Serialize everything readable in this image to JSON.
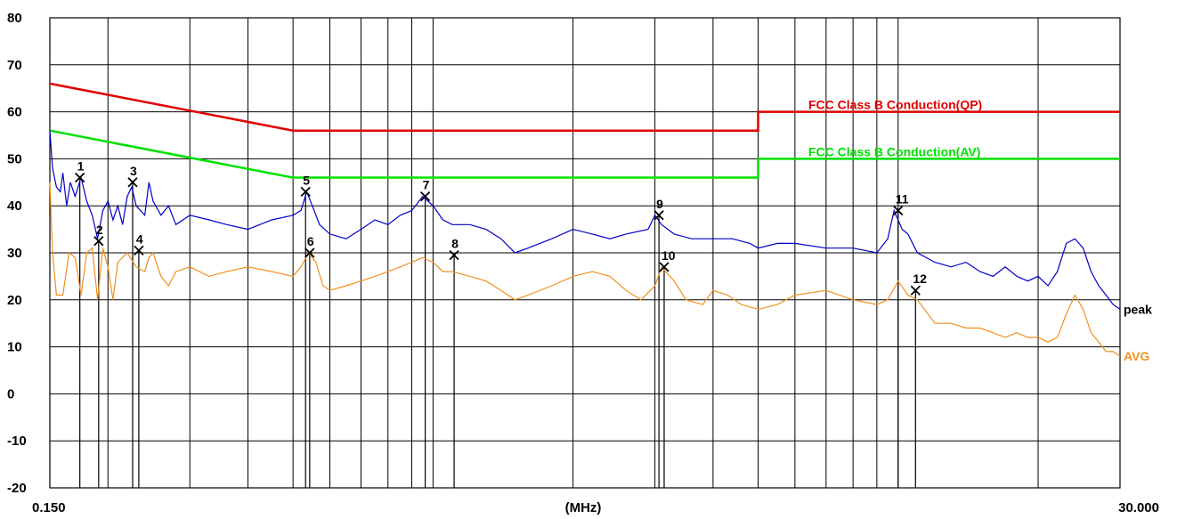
{
  "chart_data": {
    "type": "line",
    "xlabel": "(MHz)",
    "xscale": "log",
    "xlim": [
      0.15,
      30
    ],
    "x_tick_labels": [
      "0.150",
      "30.000"
    ],
    "ylim": [
      -25,
      80
    ],
    "y_ticks": [
      80,
      70,
      60,
      50,
      40,
      30,
      20,
      10,
      0,
      -10,
      -20
    ],
    "grid": true,
    "limits": [
      {
        "name": "FCC Class B Conduction(QP)",
        "color": "#e00000",
        "points": [
          [
            0.15,
            66
          ],
          [
            0.5,
            56
          ],
          [
            5,
            56
          ],
          [
            5,
            60
          ],
          [
            30,
            60
          ]
        ]
      },
      {
        "name": "FCC Class B Conduction(AV)",
        "color": "#00e000",
        "points": [
          [
            0.15,
            56
          ],
          [
            0.5,
            46
          ],
          [
            5,
            46
          ],
          [
            5,
            50
          ],
          [
            30,
            50
          ]
        ]
      }
    ],
    "series": [
      {
        "name": "peak",
        "color": "#0000c8",
        "points": [
          [
            0.15,
            56
          ],
          [
            0.152,
            48
          ],
          [
            0.155,
            44
          ],
          [
            0.158,
            43
          ],
          [
            0.16,
            47
          ],
          [
            0.163,
            40
          ],
          [
            0.166,
            45
          ],
          [
            0.17,
            42
          ],
          [
            0.175,
            46
          ],
          [
            0.18,
            41
          ],
          [
            0.185,
            38
          ],
          [
            0.19,
            33
          ],
          [
            0.195,
            39
          ],
          [
            0.2,
            41
          ],
          [
            0.205,
            37
          ],
          [
            0.21,
            40
          ],
          [
            0.215,
            36
          ],
          [
            0.22,
            42
          ],
          [
            0.225,
            44
          ],
          [
            0.23,
            40
          ],
          [
            0.24,
            38
          ],
          [
            0.245,
            45
          ],
          [
            0.25,
            41
          ],
          [
            0.26,
            38
          ],
          [
            0.27,
            40
          ],
          [
            0.28,
            36
          ],
          [
            0.3,
            38
          ],
          [
            0.33,
            37
          ],
          [
            0.36,
            36
          ],
          [
            0.4,
            35
          ],
          [
            0.45,
            37
          ],
          [
            0.5,
            38
          ],
          [
            0.52,
            39
          ],
          [
            0.535,
            43
          ],
          [
            0.55,
            40
          ],
          [
            0.57,
            36
          ],
          [
            0.6,
            34
          ],
          [
            0.65,
            33
          ],
          [
            0.7,
            35
          ],
          [
            0.75,
            37
          ],
          [
            0.8,
            36
          ],
          [
            0.85,
            38
          ],
          [
            0.9,
            39
          ],
          [
            0.95,
            42
          ],
          [
            1.0,
            40
          ],
          [
            1.05,
            37
          ],
          [
            1.1,
            36
          ],
          [
            1.2,
            36
          ],
          [
            1.3,
            35
          ],
          [
            1.4,
            33
          ],
          [
            1.5,
            30
          ],
          [
            1.6,
            31
          ],
          [
            1.8,
            33
          ],
          [
            2.0,
            35
          ],
          [
            2.2,
            34
          ],
          [
            2.4,
            33
          ],
          [
            2.6,
            34
          ],
          [
            2.9,
            35
          ],
          [
            3.0,
            38
          ],
          [
            3.1,
            36
          ],
          [
            3.3,
            34
          ],
          [
            3.6,
            33
          ],
          [
            4.0,
            33
          ],
          [
            4.4,
            33
          ],
          [
            4.8,
            32
          ],
          [
            5.0,
            31
          ],
          [
            5.5,
            32
          ],
          [
            6.0,
            32
          ],
          [
            7.0,
            31
          ],
          [
            8.0,
            31
          ],
          [
            9.0,
            30
          ],
          [
            9.5,
            33
          ],
          [
            9.8,
            39
          ],
          [
            10.2,
            35
          ],
          [
            10.5,
            34
          ],
          [
            11,
            30
          ],
          [
            12,
            28
          ],
          [
            13,
            27
          ],
          [
            14,
            28
          ],
          [
            15,
            26
          ],
          [
            16,
            25
          ],
          [
            17,
            27
          ],
          [
            18,
            25
          ],
          [
            19,
            24
          ],
          [
            20,
            25
          ],
          [
            21,
            23
          ],
          [
            22,
            26
          ],
          [
            23,
            32
          ],
          [
            24,
            33
          ],
          [
            25,
            31
          ],
          [
            26,
            26
          ],
          [
            27,
            23
          ],
          [
            28,
            21
          ],
          [
            29,
            19
          ],
          [
            30,
            18
          ]
        ]
      },
      {
        "name": "AVG",
        "color": "#f09020",
        "points": [
          [
            0.15,
            45
          ],
          [
            0.152,
            30
          ],
          [
            0.155,
            21
          ],
          [
            0.16,
            21
          ],
          [
            0.165,
            30
          ],
          [
            0.17,
            29
          ],
          [
            0.175,
            21
          ],
          [
            0.18,
            30
          ],
          [
            0.185,
            31
          ],
          [
            0.19,
            20
          ],
          [
            0.195,
            31
          ],
          [
            0.2,
            27
          ],
          [
            0.205,
            20
          ],
          [
            0.21,
            28
          ],
          [
            0.22,
            30
          ],
          [
            0.23,
            27
          ],
          [
            0.24,
            26
          ],
          [
            0.245,
            29
          ],
          [
            0.25,
            30
          ],
          [
            0.26,
            25
          ],
          [
            0.27,
            23
          ],
          [
            0.28,
            26
          ],
          [
            0.3,
            27
          ],
          [
            0.33,
            25
          ],
          [
            0.36,
            26
          ],
          [
            0.4,
            27
          ],
          [
            0.45,
            26
          ],
          [
            0.5,
            25
          ],
          [
            0.52,
            27
          ],
          [
            0.54,
            30
          ],
          [
            0.56,
            28
          ],
          [
            0.58,
            23
          ],
          [
            0.6,
            22
          ],
          [
            0.65,
            23
          ],
          [
            0.7,
            24
          ],
          [
            0.75,
            25
          ],
          [
            0.8,
            26
          ],
          [
            0.85,
            27
          ],
          [
            0.9,
            28
          ],
          [
            0.95,
            29
          ],
          [
            1.0,
            28
          ],
          [
            1.05,
            26
          ],
          [
            1.1,
            26
          ],
          [
            1.2,
            25
          ],
          [
            1.3,
            24
          ],
          [
            1.4,
            22
          ],
          [
            1.5,
            20
          ],
          [
            1.6,
            21
          ],
          [
            1.8,
            23
          ],
          [
            2.0,
            25
          ],
          [
            2.2,
            26
          ],
          [
            2.4,
            25
          ],
          [
            2.6,
            22
          ],
          [
            2.8,
            20
          ],
          [
            3.0,
            23
          ],
          [
            3.1,
            27
          ],
          [
            3.3,
            24
          ],
          [
            3.5,
            20
          ],
          [
            3.8,
            19
          ],
          [
            4.0,
            22
          ],
          [
            4.3,
            21
          ],
          [
            4.6,
            19
          ],
          [
            5.0,
            18
          ],
          [
            5.5,
            19
          ],
          [
            6.0,
            21
          ],
          [
            7.0,
            22
          ],
          [
            8.0,
            20
          ],
          [
            9.0,
            19
          ],
          [
            9.5,
            20
          ],
          [
            10.0,
            24
          ],
          [
            10.5,
            21
          ],
          [
            11,
            20
          ],
          [
            12,
            15
          ],
          [
            13,
            15
          ],
          [
            14,
            14
          ],
          [
            15,
            14
          ],
          [
            16,
            13
          ],
          [
            17,
            12
          ],
          [
            18,
            13
          ],
          [
            19,
            12
          ],
          [
            20,
            12
          ],
          [
            21,
            11
          ],
          [
            22,
            12
          ],
          [
            23,
            17
          ],
          [
            24,
            21
          ],
          [
            25,
            18
          ],
          [
            26,
            13
          ],
          [
            27,
            11
          ],
          [
            28,
            9
          ],
          [
            29,
            9
          ],
          [
            30,
            8
          ]
        ]
      }
    ],
    "markers": [
      {
        "label": "1",
        "x": 0.174,
        "y": 46
      },
      {
        "label": "2",
        "x": 0.191,
        "y": 32.5
      },
      {
        "label": "3",
        "x": 0.226,
        "y": 45
      },
      {
        "label": "4",
        "x": 0.233,
        "y": 30.5
      },
      {
        "label": "5",
        "x": 0.532,
        "y": 43
      },
      {
        "label": "6",
        "x": 0.543,
        "y": 30
      },
      {
        "label": "7",
        "x": 0.962,
        "y": 42
      },
      {
        "label": "8",
        "x": 1.11,
        "y": 29.5
      },
      {
        "label": "9",
        "x": 3.06,
        "y": 38
      },
      {
        "label": "10",
        "x": 3.14,
        "y": 27
      },
      {
        "label": "11",
        "x": 10.0,
        "y": 39
      },
      {
        "label": "12",
        "x": 10.9,
        "y": 22
      }
    ]
  }
}
